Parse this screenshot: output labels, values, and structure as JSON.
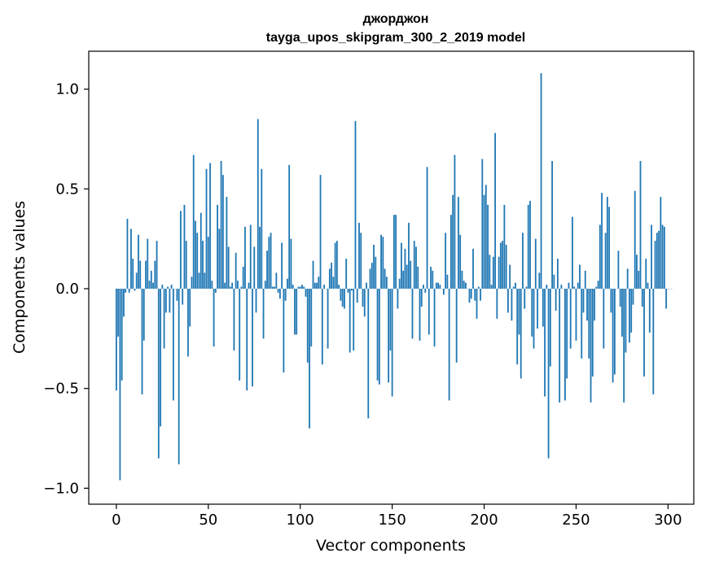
{
  "chart_data": {
    "type": "bar",
    "title": "джорджон",
    "subtitle": "tayga_upos_skipgram_300_2_2019 model",
    "xlabel": "Vector components",
    "ylabel": "Components values",
    "xlim": [
      -15,
      314
    ],
    "ylim": [
      -1.08,
      1.19
    ],
    "xticks": [
      0,
      50,
      100,
      150,
      200,
      250,
      300
    ],
    "xtick_labels": [
      "0",
      "50",
      "100",
      "150",
      "200",
      "250",
      "300"
    ],
    "yticks": [
      -1.0,
      -0.5,
      0.0,
      0.5,
      1.0
    ],
    "ytick_labels": [
      "−1.0",
      "−0.5",
      "0.0",
      "0.5",
      "1.0"
    ],
    "bar_color": "#1f77b4",
    "grid": false,
    "values": [
      -0.51,
      -0.24,
      -0.96,
      -0.46,
      -0.14,
      -0.02,
      0.35,
      -0.02,
      0.3,
      0.15,
      -0.01,
      0.08,
      0.27,
      0.14,
      -0.53,
      -0.26,
      0.14,
      0.25,
      0.04,
      0.09,
      0.03,
      0.14,
      0.24,
      -0.85,
      -0.69,
      0.02,
      -0.3,
      -0.12,
      0.01,
      -0.12,
      0.02,
      -0.56,
      0.0,
      -0.06,
      -0.88,
      0.39,
      -0.08,
      0.42,
      0.24,
      -0.34,
      -0.19,
      0.06,
      0.67,
      0.34,
      0.28,
      0.08,
      0.38,
      0.24,
      0.08,
      0.6,
      0.26,
      0.63,
      0.04,
      -0.29,
      -0.02,
      0.42,
      0.3,
      0.64,
      0.57,
      0.03,
      0.46,
      0.21,
      0.01,
      0.03,
      -0.31,
      0.18,
      0.04,
      -0.46,
      0.01,
      0.11,
      0.31,
      -0.51,
      0.03,
      0.32,
      -0.49,
      0.21,
      -0.12,
      0.85,
      0.31,
      0.6,
      -0.25,
      0.04,
      0.19,
      0.26,
      0.28,
      0.01,
      0.01,
      0.08,
      -0.02,
      -0.05,
      0.23,
      -0.42,
      -0.06,
      0.05,
      0.62,
      0.25,
      0.02,
      -0.23,
      -0.23,
      0.01,
      0.01,
      0.02,
      0.01,
      -0.04,
      -0.37,
      -0.7,
      -0.29,
      0.14,
      0.03,
      0.03,
      0.06,
      0.57,
      -0.38,
      0.02,
      0.0,
      -0.3,
      0.1,
      0.13,
      0.06,
      0.23,
      0.24,
      0.02,
      -0.06,
      -0.09,
      -0.1,
      0.15,
      -0.02,
      -0.32,
      -0.01,
      -0.31,
      0.84,
      -0.07,
      0.33,
      0.28,
      -0.09,
      -0.14,
      0.03,
      -0.65,
      0.1,
      0.13,
      0.22,
      0.16,
      -0.46,
      -0.48,
      0.27,
      0.26,
      0.1,
      0.06,
      -0.47,
      -0.31,
      -0.54,
      0.37,
      0.37,
      -0.1,
      0.05,
      0.23,
      0.09,
      0.2,
      0.12,
      0.33,
      0.14,
      -0.25,
      0.24,
      0.21,
      0.11,
      -0.26,
      -0.09,
      0.02,
      -0.02,
      0.61,
      -0.23,
      0.11,
      0.09,
      -0.29,
      0.03,
      0.03,
      0.02,
      0.0,
      -0.03,
      0.28,
      0.07,
      -0.56,
      0.37,
      0.47,
      0.67,
      -0.37,
      0.46,
      0.27,
      0.09,
      0.04,
      0.03,
      0.0,
      -0.07,
      -0.05,
      0.2,
      -0.06,
      -0.15,
      0.01,
      -0.06,
      0.65,
      0.47,
      0.52,
      0.42,
      0.17,
      0.02,
      0.16,
      0.78,
      -0.15,
      0.16,
      0.23,
      0.24,
      0.42,
      0.22,
      -0.12,
      0.12,
      -0.16,
      0.01,
      0.03,
      -0.38,
      -0.23,
      -0.45,
      0.28,
      -0.1,
      0.01,
      0.42,
      0.44,
      -0.24,
      -0.3,
      0.25,
      -0.2,
      0.08,
      1.08,
      -0.19,
      -0.54,
      0.02,
      -0.85,
      -0.39,
      0.64,
      0.07,
      -0.11,
      0.15,
      -0.57,
      0.02,
      0.0,
      -0.56,
      -0.45,
      0.03,
      -0.3,
      0.36,
      0.01,
      -0.26,
      0.03,
      0.12,
      -0.35,
      -0.12,
      0.09,
      -0.16,
      -0.35,
      -0.57,
      -0.44,
      -0.16,
      0.01,
      0.04,
      0.32,
      0.48,
      -0.3,
      0.28,
      0.46,
      0.41,
      -0.12,
      -0.47,
      -0.43,
      0.0,
      0.19,
      -0.09,
      -0.24,
      -0.57,
      -0.32,
      0.1,
      -0.27,
      -0.22,
      -0.08,
      0.49,
      0.17,
      0.09,
      0.64,
      -0.09,
      -0.44,
      0.15,
      0.03,
      -0.22,
      0.32,
      -0.53,
      0.24,
      0.28,
      0.29,
      0.46,
      0.32,
      0.31,
      -0.1,
      0.0,
      0.0,
      0.0
    ]
  }
}
